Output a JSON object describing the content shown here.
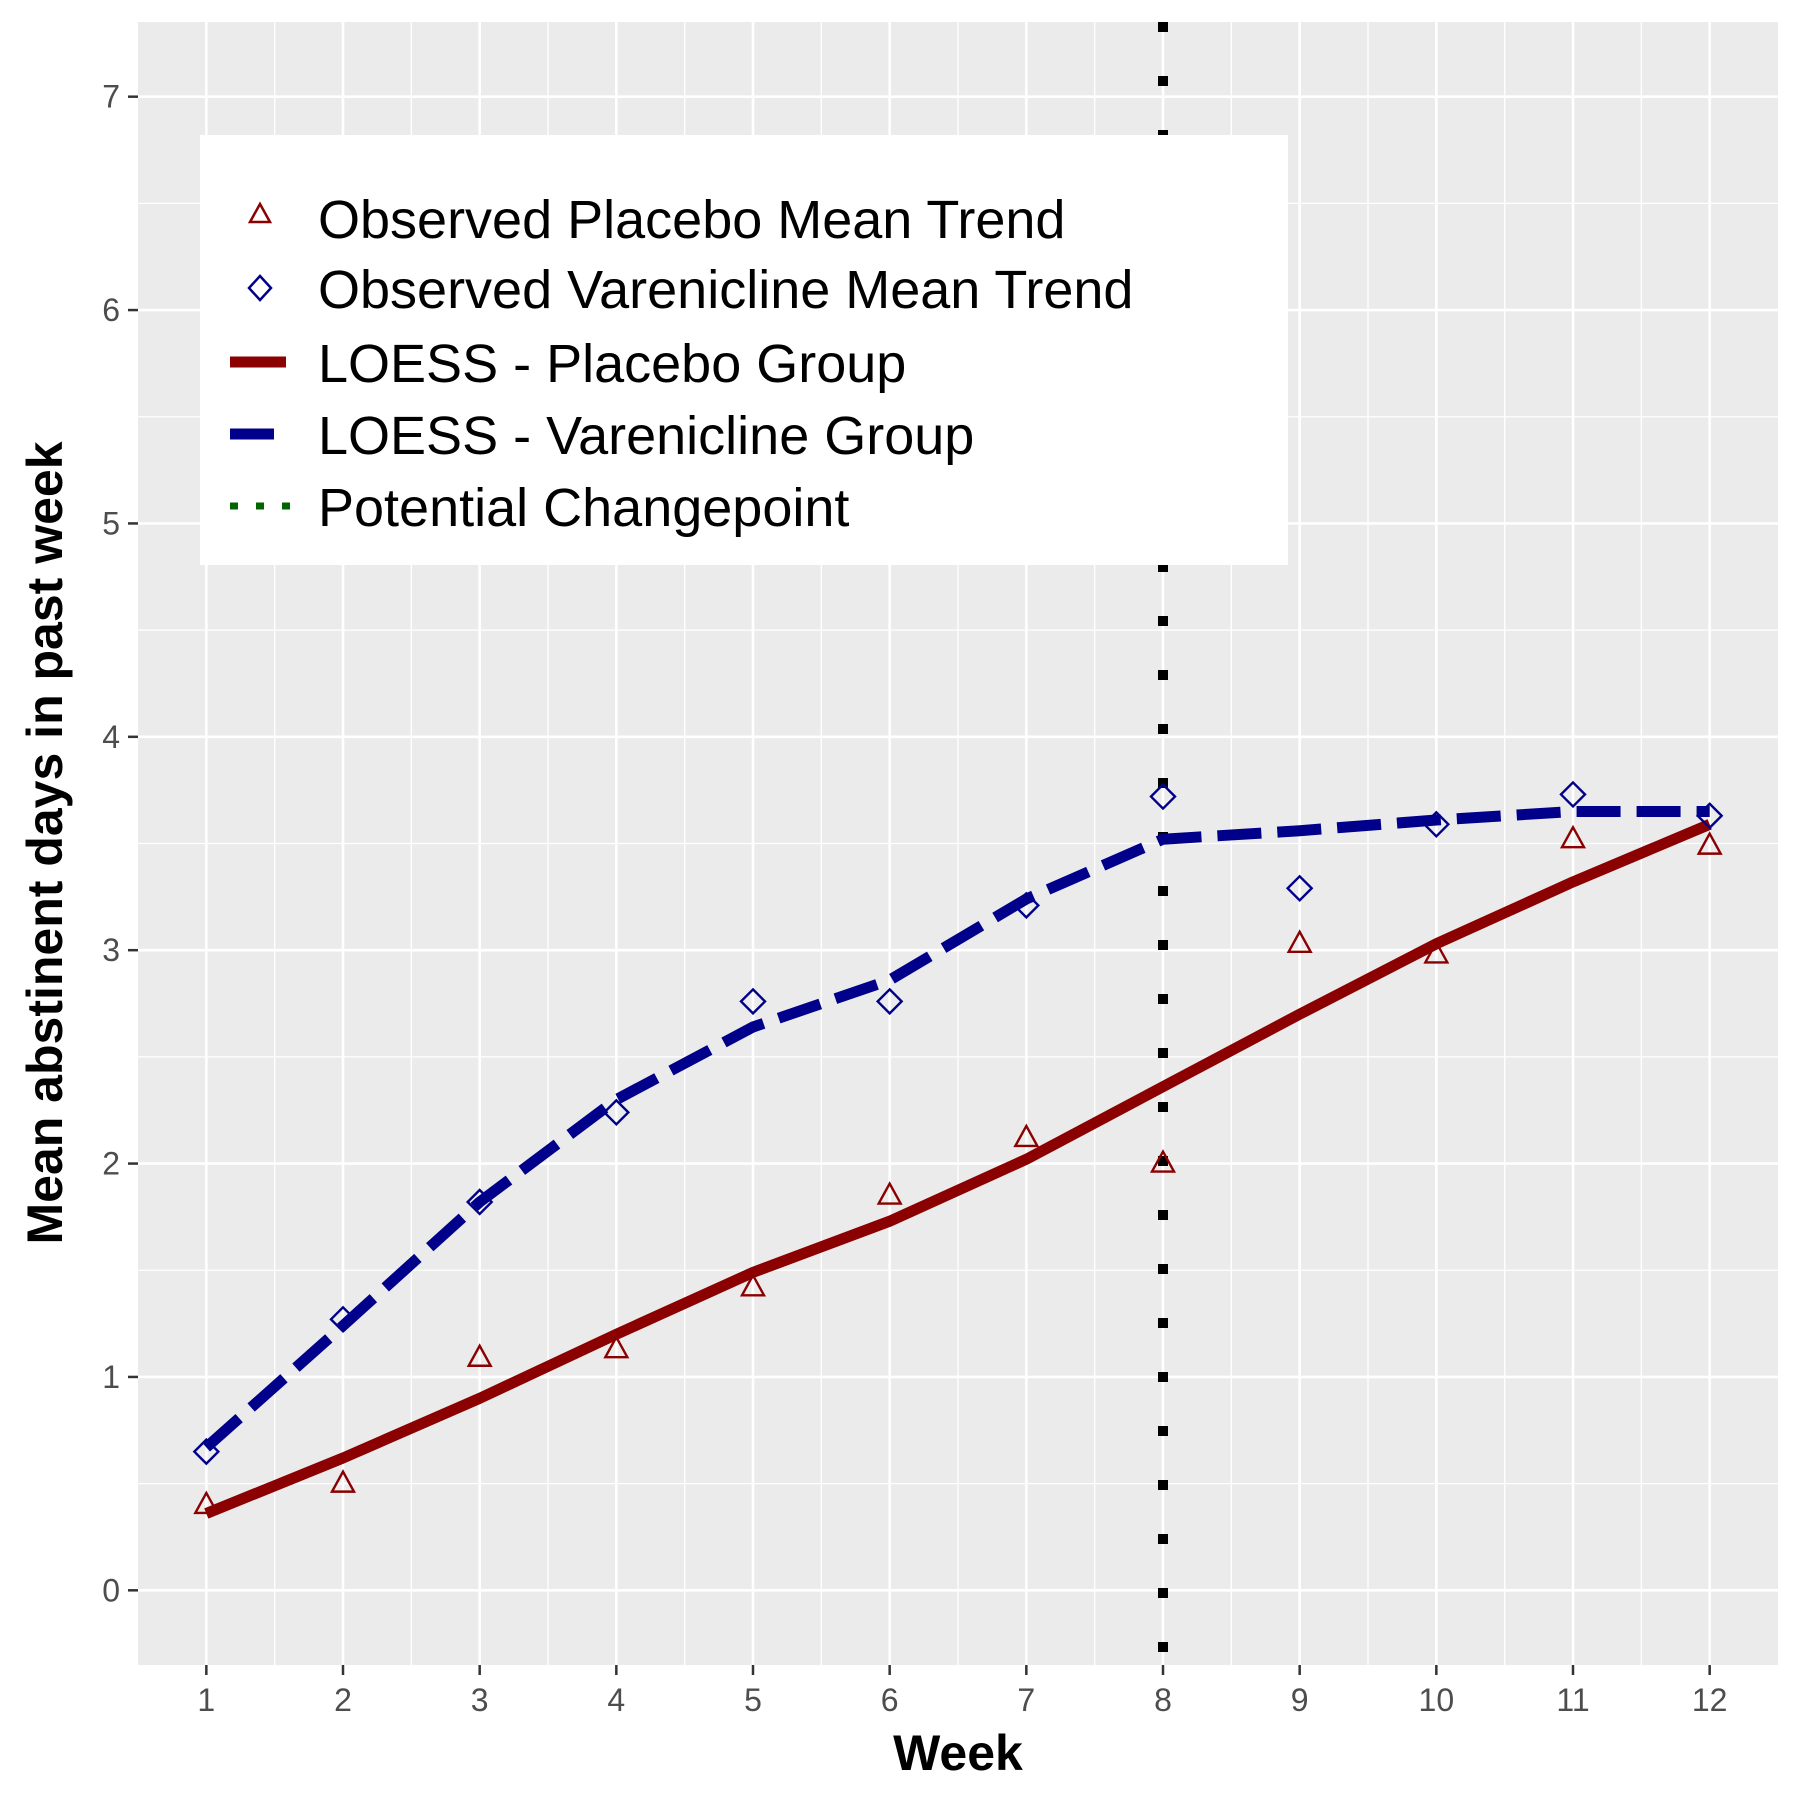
{
  "chart_data": {
    "type": "line",
    "title": "",
    "xlabel": "Week",
    "ylabel": "Mean abstinent days in past week",
    "xlim": [
      0.5,
      12.5
    ],
    "ylim": [
      -0.35,
      7.35
    ],
    "x_ticks": [
      1,
      2,
      3,
      4,
      5,
      6,
      7,
      8,
      9,
      10,
      11,
      12
    ],
    "y_ticks": [
      0,
      1,
      2,
      3,
      4,
      5,
      6,
      7
    ],
    "grid": true,
    "legend_position": "top-left",
    "changepoint_x": 8,
    "series": [
      {
        "name": "Observed Placebo Mean Trend",
        "kind": "points",
        "marker": "triangle",
        "color": "#8b0000",
        "x": [
          1,
          2,
          3,
          4,
          5,
          6,
          7,
          8,
          9,
          10,
          11,
          12
        ],
        "y": [
          0.4,
          0.5,
          1.09,
          1.13,
          1.42,
          1.85,
          2.12,
          2.0,
          3.03,
          2.98,
          3.52,
          3.49
        ]
      },
      {
        "name": "Observed Varenicline Mean Trend",
        "kind": "points",
        "marker": "diamond",
        "color": "#00008b",
        "x": [
          1,
          2,
          3,
          4,
          5,
          6,
          7,
          8,
          9,
          10,
          11,
          12
        ],
        "y": [
          0.65,
          1.27,
          1.82,
          2.24,
          2.76,
          2.76,
          3.21,
          3.72,
          3.29,
          3.59,
          3.73,
          3.63
        ]
      },
      {
        "name": "LOESS - Placebo Group",
        "kind": "line",
        "style": "solid",
        "color": "#8b0000",
        "x": [
          1,
          2,
          3,
          4,
          5,
          6,
          7,
          8,
          9,
          10,
          11,
          12
        ],
        "y": [
          0.36,
          0.62,
          0.9,
          1.2,
          1.49,
          1.73,
          2.02,
          2.36,
          2.7,
          3.03,
          3.32,
          3.59
        ]
      },
      {
        "name": "LOESS - Varenicline Group",
        "kind": "line",
        "style": "dashed",
        "color": "#00008b",
        "x": [
          1,
          2,
          3,
          4,
          5,
          6,
          7,
          8,
          9,
          10,
          11,
          12
        ],
        "y": [
          0.67,
          1.24,
          1.82,
          2.3,
          2.64,
          2.86,
          3.24,
          3.52,
          3.56,
          3.61,
          3.65,
          3.65
        ]
      },
      {
        "name": "Potential Changepoint",
        "kind": "vline",
        "style": "dotted",
        "color": "#000000",
        "legend_color": "#006400",
        "x": [
          8
        ]
      }
    ]
  },
  "colors": {
    "panel_background": "#ebebeb",
    "grid": "#ffffff",
    "placebo": "#8b0000",
    "varenicline": "#00008b",
    "changepoint": "#000000",
    "changepoint_legend": "#006400"
  }
}
